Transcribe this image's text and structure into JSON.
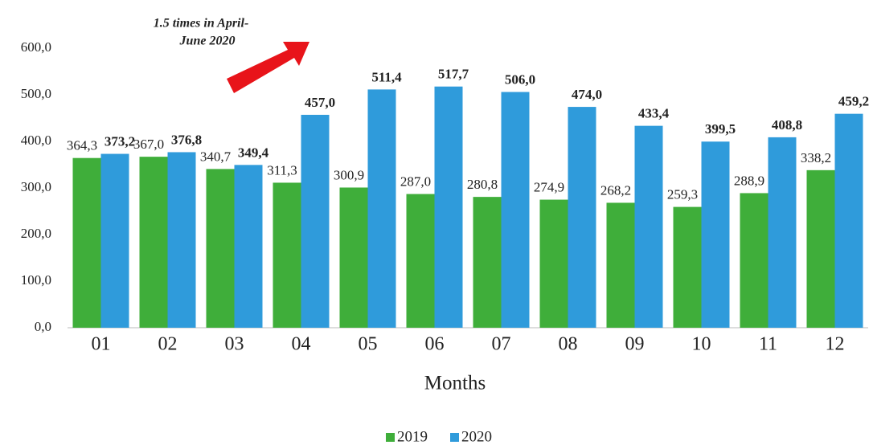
{
  "chart_data": {
    "type": "bar",
    "annotation": [
      "1.5 times in April-",
      "June 2020"
    ],
    "x_label": "Months",
    "categories": [
      "01",
      "02",
      "03",
      "04",
      "05",
      "06",
      "07",
      "08",
      "09",
      "10",
      "11",
      "12"
    ],
    "series": [
      {
        "name": "2019",
        "color": "#3fae3a",
        "values": [
          364.3,
          367.0,
          340.7,
          311.3,
          300.9,
          287.0,
          280.8,
          274.9,
          268.2,
          259.3,
          288.9,
          338.2
        ],
        "value_labels": [
          "364,3",
          "367,0",
          "340,7",
          "311,3",
          "300,9",
          "287,0",
          "280,8",
          "274,9",
          "268,2",
          "259,3",
          "288,9",
          "338,2"
        ]
      },
      {
        "name": "2020",
        "color": "#2f9bdb",
        "values": [
          373.2,
          376.8,
          349.4,
          457.0,
          511.4,
          517.7,
          506.0,
          474.0,
          433.4,
          399.5,
          408.8,
          459.2
        ],
        "value_labels": [
          "373,2",
          "376,8",
          "349,4",
          "457,0",
          "511,4",
          "517,7",
          "506,0",
          "474,0",
          "433,4",
          "399,5",
          "408,8",
          "459,2"
        ]
      }
    ],
    "ylim": [
      0,
      600
    ],
    "yticks": [
      {
        "value": 0,
        "label": "0,0"
      },
      {
        "value": 100,
        "label": "100,0"
      },
      {
        "value": 200,
        "label": "200,0"
      },
      {
        "value": 300,
        "label": "300,0"
      },
      {
        "value": 400,
        "label": "400,0"
      },
      {
        "value": 500,
        "label": "500,0"
      },
      {
        "value": 600,
        "label": "600,0"
      }
    ],
    "grid": false,
    "legend": "bottom"
  }
}
